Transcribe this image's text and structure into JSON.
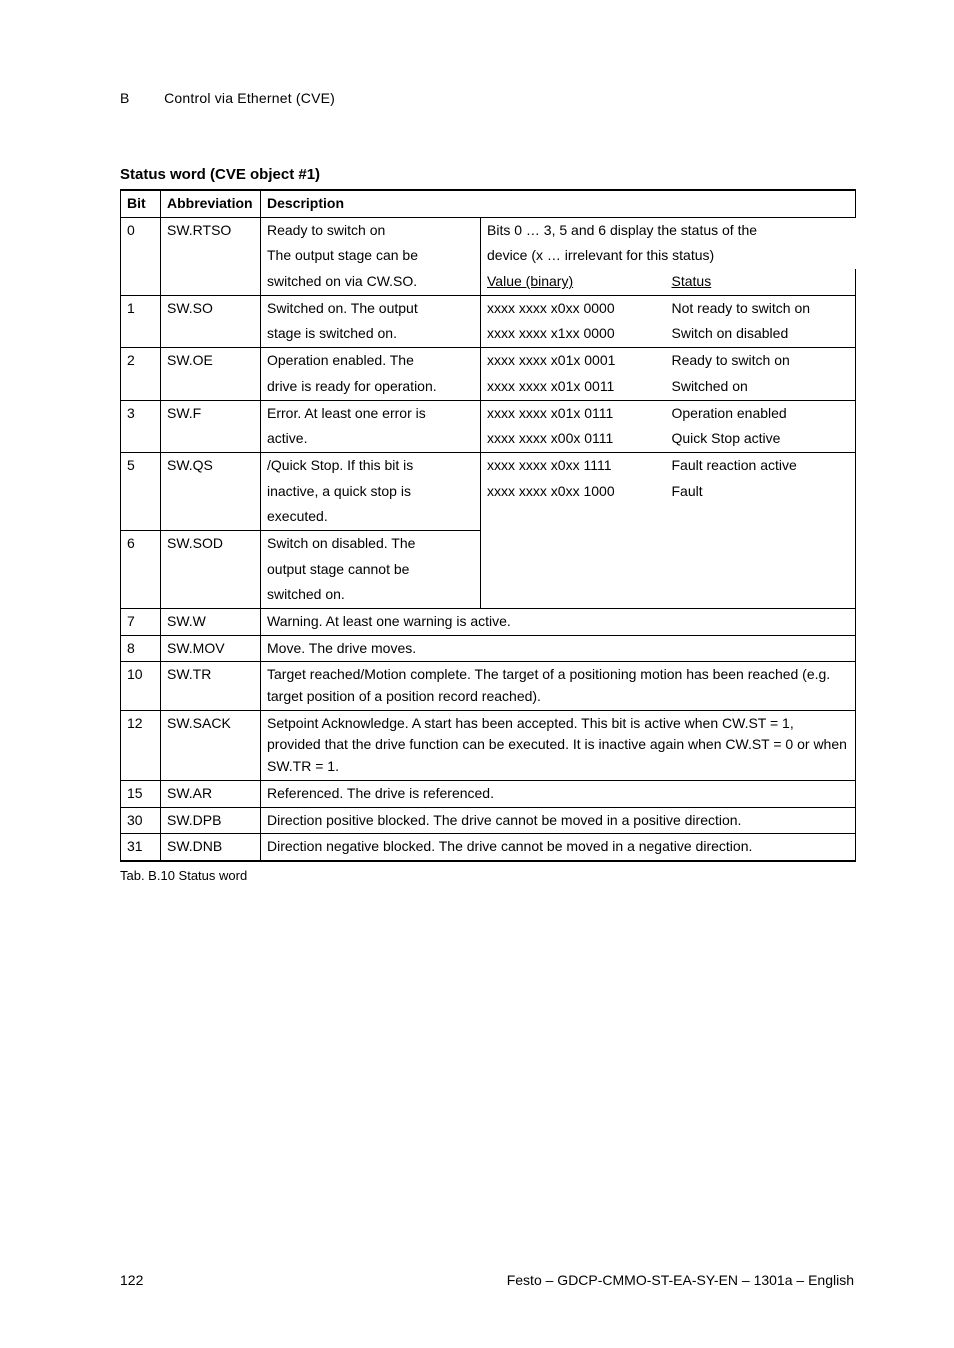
{
  "header": {
    "section_letter": "B",
    "section_title": "Control via Ethernet (CVE)"
  },
  "section_title": "Status word (CVE object #1)",
  "table": {
    "headers": {
      "bit": "Bit",
      "abbr": "Abbreviation",
      "desc": "Description"
    },
    "right_block": {
      "intro_line1": "Bits 0 … 3, 5 and 6 display the status of the",
      "intro_line2": "device (x … irrelevant for this status)",
      "value_header": "Value (binary)",
      "status_header": "Status",
      "rows": [
        {
          "value": "xxxx xxxx x0xx 0000",
          "status": "Not ready to switch on"
        },
        {
          "value": "xxxx xxxx x1xx 0000",
          "status": "Switch on disabled"
        },
        {
          "value": "xxxx xxxx x01x 0001",
          "status": "Ready to switch on"
        },
        {
          "value": "xxxx xxxx x01x 0011",
          "status": "Switched on"
        },
        {
          "value": "xxxx xxxx x01x 0111",
          "status": "Operation enabled"
        },
        {
          "value": "xxxx xxxx x00x 0111",
          "status": "Quick Stop active"
        },
        {
          "value": "xxxx xxxx x0xx 1111",
          "status": "Fault reaction active"
        },
        {
          "value": "xxxx xxxx x0xx 1000",
          "status": "Fault"
        }
      ]
    },
    "left_rows": [
      {
        "bit": "0",
        "abbr": "SW.RTSO",
        "desc_lines": [
          "Ready to switch on",
          "The output stage can be",
          "switched on via CW.SO."
        ]
      },
      {
        "bit": "1",
        "abbr": "SW.SO",
        "desc_lines": [
          "Switched on. The output",
          "stage is switched on."
        ]
      },
      {
        "bit": "2",
        "abbr": "SW.OE",
        "desc_lines": [
          "Operation enabled. The",
          "drive is ready for operation."
        ]
      },
      {
        "bit": "3",
        "abbr": "SW.F",
        "desc_lines": [
          "Error. At least one error is",
          "active."
        ]
      },
      {
        "bit": "5",
        "abbr": "SW.QS",
        "desc_lines": [
          "/Quick Stop. If this bit is",
          "inactive, a quick stop is",
          "executed."
        ]
      },
      {
        "bit": "6",
        "abbr": "SW.SOD",
        "desc_lines": [
          "Switch on disabled. The",
          "output stage cannot be",
          "switched on."
        ]
      }
    ],
    "full_rows": [
      {
        "bit": "7",
        "abbr": "SW.W",
        "desc": "Warning. At least one warning is active."
      },
      {
        "bit": "8",
        "abbr": "SW.MOV",
        "desc": "Move. The drive moves."
      },
      {
        "bit": "10",
        "abbr": "SW.TR",
        "desc": "Target reached/Motion complete. The target of a positioning motion has been reached (e.g. target position of a position record reached)."
      },
      {
        "bit": "12",
        "abbr": "SW.SACK",
        "desc": "Setpoint Acknowledge. A start has been accepted. This bit is active when CW.ST = 1, provided that the drive function can be executed. It is inactive again when CW.ST = 0 or when SW.TR = 1."
      },
      {
        "bit": "15",
        "abbr": "SW.AR",
        "desc": "Referenced. The drive is referenced."
      },
      {
        "bit": "30",
        "abbr": "SW.DPB",
        "desc": "Direction positive blocked. The drive cannot be moved in a positive direction."
      },
      {
        "bit": "31",
        "abbr": "SW.DNB",
        "desc": "Direction negative blocked. The drive cannot be moved in a negative direction."
      }
    ]
  },
  "caption": "Tab. B.10  Status word",
  "footer": {
    "page_number": "122",
    "doc_id": "Festo – GDCP-CMMO-ST-EA-SY-EN – 1301a – English"
  }
}
